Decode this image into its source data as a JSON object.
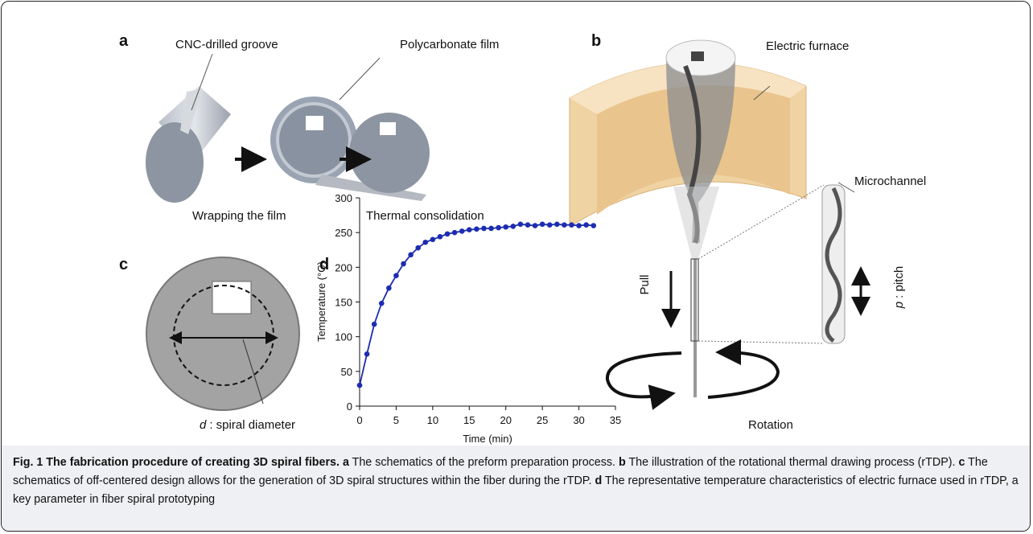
{
  "panels": {
    "a": {
      "label": "a",
      "groove": "CNC-drilled groove",
      "film": "Polycarbonate film",
      "step1": "Wrapping the film",
      "step2": "Thermal consolidation"
    },
    "b": {
      "label": "b",
      "furnace": "Electric furnace",
      "microchannel": "Microchannel",
      "pull": "Pull",
      "pitch_symbol": "p",
      "pitch_text": ": pitch",
      "rotation": "Rotation"
    },
    "c": {
      "label": "c",
      "diameter_symbol": "d",
      "diameter_text": ": spiral diameter"
    },
    "d": {
      "label": "d"
    }
  },
  "chart_data": {
    "type": "line",
    "x_label": "Time (min)",
    "y_label": "Temperature (°C)",
    "xlim": [
      0,
      35
    ],
    "xticks": [
      0,
      5,
      10,
      15,
      20,
      25,
      30,
      35
    ],
    "ylim": [
      0,
      300
    ],
    "yticks": [
      0,
      50,
      100,
      150,
      200,
      250,
      300
    ],
    "series": [
      {
        "color": "#1d2db0",
        "x": [
          0,
          1,
          2,
          3,
          4,
          5,
          6,
          7,
          8,
          9,
          10,
          11,
          12,
          13,
          14,
          15,
          16,
          17,
          18,
          19,
          20,
          21,
          22,
          23,
          24,
          25,
          26,
          27,
          28,
          29,
          30,
          31,
          32
        ],
        "values": [
          30,
          75,
          118,
          148,
          170,
          188,
          205,
          218,
          228,
          236,
          240,
          244,
          248,
          250,
          252,
          254,
          255,
          256,
          256,
          257,
          258,
          259,
          262,
          261,
          260,
          262,
          261,
          262,
          261,
          261,
          260,
          261,
          260
        ]
      }
    ]
  },
  "caption": {
    "title": "Fig. 1 The fabrication procedure of creating 3D spiral fibers.",
    "parts": [
      {
        "label": "a",
        "text": "The schematics of the preform preparation process."
      },
      {
        "label": "b",
        "text": "The illustration of the rotational thermal drawing process (rTDP)."
      },
      {
        "label": "c",
        "text": "The schematics of off-centered design allows for the generation of 3D spiral structures within the fiber during the rTDP."
      },
      {
        "label": "d",
        "text": "The representative temperature characteristics of electric furnace used in rTDP, a key parameter in fiber spiral prototyping"
      }
    ]
  }
}
